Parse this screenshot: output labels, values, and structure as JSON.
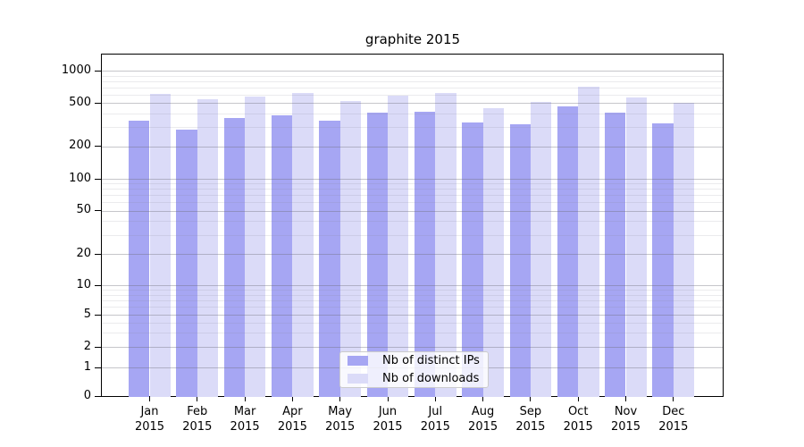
{
  "figure": {
    "title": "graphite 2015"
  },
  "chart_data": {
    "type": "bar",
    "title": "graphite 2015",
    "categories": [
      "Jan 2015",
      "Feb 2015",
      "Mar 2015",
      "Apr 2015",
      "May 2015",
      "Jun 2015",
      "Jul 2015",
      "Aug 2015",
      "Sep 2015",
      "Oct 2015",
      "Nov 2015",
      "Dec 2015"
    ],
    "series": [
      {
        "name": "Nb of distinct IPs",
        "color": "#a6a6f3",
        "values": [
          345,
          285,
          365,
          385,
          345,
          405,
          415,
          330,
          320,
          460,
          410,
          325
        ]
      },
      {
        "name": "Nb of downloads",
        "color": "#dbdbf8",
        "values": [
          605,
          540,
          575,
          620,
          525,
          585,
          615,
          450,
          515,
          705,
          560,
          505
        ]
      }
    ],
    "xlabel": "",
    "ylabel": "",
    "yscale": "symlog",
    "ylim": [
      0,
      1400
    ],
    "yticks": [
      0,
      1,
      2,
      5,
      10,
      20,
      50,
      100,
      200,
      500,
      1000
    ],
    "yticks_minor": [
      3,
      4,
      6,
      7,
      8,
      9,
      30,
      40,
      60,
      70,
      80,
      90,
      300,
      400,
      600,
      700,
      800,
      900
    ],
    "grid": "on",
    "legend_position": "lower center"
  },
  "legend": {
    "items": [
      {
        "label": "Nb of distinct IPs",
        "color": "#a6a6f3"
      },
      {
        "label": "Nb of downloads",
        "color": "#dbdbf8"
      }
    ]
  },
  "colors": {
    "distinct_ips_bar": "#a6a6f3",
    "downloads_bar": "#dbdbf8",
    "axis": "#000000",
    "major_grid": "#c8c8cc",
    "minor_grid": "#ebebee",
    "legend_border": "#cccccc"
  }
}
